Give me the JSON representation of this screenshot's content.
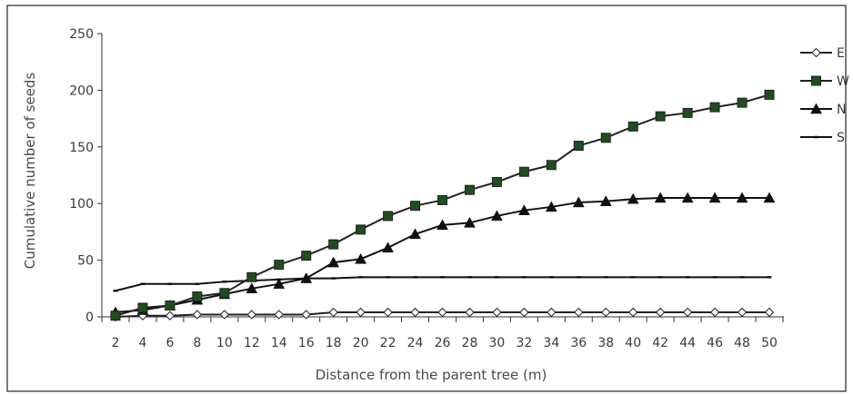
{
  "chart_data": {
    "type": "line",
    "title": "",
    "xlabel": "Distance from the parent tree (m)",
    "ylabel": "Cumulative number of seeds",
    "x": [
      2,
      4,
      6,
      8,
      10,
      12,
      14,
      16,
      18,
      20,
      22,
      24,
      26,
      28,
      30,
      32,
      34,
      36,
      38,
      40,
      42,
      44,
      46,
      48,
      50
    ],
    "xticks": [
      "2",
      "4",
      "6",
      "8",
      "10",
      "12",
      "14",
      "16",
      "18",
      "20",
      "22",
      "24",
      "26",
      "28",
      "30",
      "32",
      "34",
      "36",
      "38",
      "40",
      "42",
      "44",
      "46",
      "48",
      "50"
    ],
    "ylim": [
      0,
      250
    ],
    "yticks": [
      0,
      50,
      100,
      150,
      200,
      250
    ],
    "grid": false,
    "legend_position": "right",
    "series": [
      {
        "name": "E",
        "marker": "diamond-open",
        "color": "#222222",
        "values": [
          0,
          1,
          1,
          2,
          2,
          2,
          2,
          2,
          4,
          4,
          4,
          4,
          4,
          4,
          4,
          4,
          4,
          4,
          4,
          4,
          4,
          4,
          4,
          4,
          4
        ]
      },
      {
        "name": "W",
        "marker": "square-filled",
        "color": "#222222",
        "fill": "#1f4d1f",
        "values": [
          1,
          8,
          10,
          18,
          21,
          35,
          46,
          54,
          64,
          77,
          89,
          98,
          103,
          112,
          119,
          128,
          134,
          151,
          158,
          168,
          177,
          180,
          185,
          189,
          196
        ]
      },
      {
        "name": "N",
        "marker": "triangle-filled",
        "color": "#111111",
        "values": [
          4,
          6,
          10,
          15,
          20,
          25,
          29,
          34,
          48,
          51,
          61,
          73,
          81,
          83,
          89,
          94,
          97,
          101,
          102,
          104,
          105,
          105,
          105,
          105,
          105
        ]
      },
      {
        "name": "S",
        "marker": "dash",
        "color": "#111111",
        "values": [
          23,
          29,
          29,
          29,
          31,
          32,
          33,
          34,
          34,
          35,
          35,
          35,
          35,
          35,
          35,
          35,
          35,
          35,
          35,
          35,
          35,
          35,
          35,
          35,
          35
        ]
      }
    ]
  }
}
